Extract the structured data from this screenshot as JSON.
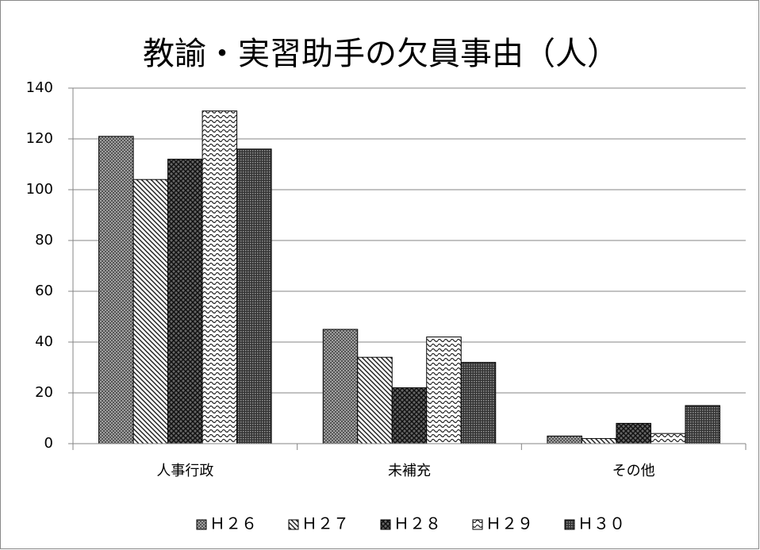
{
  "chart_data": {
    "type": "bar",
    "title": "教諭・実習助手の欠員事由（人）",
    "categories": [
      "人事行政",
      "未補充",
      "その他"
    ],
    "series": [
      {
        "name": "Ｈ２６",
        "color": "#7f7f7f",
        "values": [
          121,
          45,
          3
        ]
      },
      {
        "name": "Ｈ２７",
        "color": "#404040",
        "values": [
          104,
          34,
          2
        ]
      },
      {
        "name": "Ｈ２８",
        "color": "#3a3a3a",
        "values": [
          112,
          22,
          8
        ]
      },
      {
        "name": "Ｈ２９",
        "color": "#555555",
        "values": [
          131,
          42,
          4
        ]
      },
      {
        "name": "Ｈ３０",
        "color": "#202020",
        "values": [
          116,
          32,
          15
        ]
      }
    ],
    "ylim": [
      0,
      140
    ],
    "yticks": [
      0,
      20,
      40,
      60,
      80,
      100,
      120,
      140
    ],
    "grid": true,
    "legend": "bottom"
  }
}
